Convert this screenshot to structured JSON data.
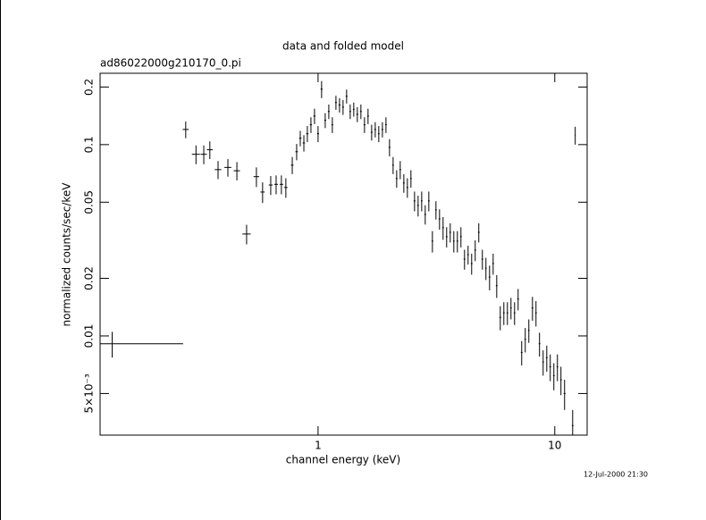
{
  "chart_data": {
    "type": "scatter",
    "title": "data and folded model",
    "subtitle": "ad86022000g210170_0.pi",
    "x_label": "channel energy (keV)",
    "y_label": "normalized counts/sec/keV",
    "timestamp": "12-Jul-2000 21:30",
    "xscale": "log",
    "yscale": "log",
    "color": "#000000",
    "xlim": [
      0.12,
      13.7
    ],
    "ylim": [
      0.00303,
      0.236
    ],
    "xticks": [
      1,
      10
    ],
    "yticks": [
      0.2,
      0.1,
      0.05,
      0.02,
      0.01,
      {
        "value": 0.005,
        "label": "5×10⁻³"
      }
    ],
    "x": [
      0.135,
      0.276,
      0.305,
      0.329,
      0.349,
      0.378,
      0.416,
      0.454,
      0.499,
      0.549,
      0.583,
      0.631,
      0.665,
      0.7,
      0.731,
      0.778,
      0.812,
      0.841,
      0.871,
      0.901,
      0.933,
      0.966,
      1.0,
      1.035,
      1.072,
      1.11,
      1.149,
      1.19,
      1.232,
      1.275,
      1.32,
      1.367,
      1.415,
      1.465,
      1.517,
      1.571,
      1.626,
      1.684,
      1.744,
      1.805,
      1.87,
      1.936,
      2.004,
      2.075,
      2.148,
      2.224,
      2.303,
      2.384,
      2.468,
      2.556,
      2.646,
      2.74,
      2.836,
      2.937,
      3.041,
      3.148,
      3.259,
      3.374,
      3.493,
      3.617,
      3.745,
      3.877,
      4.014,
      4.156,
      4.303,
      4.455,
      4.612,
      4.775,
      4.944,
      5.119,
      5.303,
      5.491,
      5.685,
      5.885,
      6.093,
      6.308,
      6.531,
      6.762,
      7.001,
      7.248,
      7.504,
      7.77,
      8.05,
      8.33,
      8.62,
      8.93,
      9.25,
      9.57,
      9.91,
      10.26,
      10.62,
      11.0,
      11.9,
      12.2
    ],
    "xerr": [
      0.134,
      0.008,
      0.012,
      0.01,
      0.01,
      0.012,
      0.014,
      0.014,
      0.02,
      0.015,
      0.012,
      0.012,
      0.012,
      0.012,
      0.012,
      0.01,
      0.01,
      0.01,
      0.01,
      0.01,
      0.01,
      0.01,
      0.01,
      0.01,
      0.01,
      0.01,
      0.01,
      0.01,
      0.012,
      0.012,
      0.012,
      0.012,
      0.012,
      0.014,
      0.014,
      0.014,
      0.014,
      0.015,
      0.015,
      0.015,
      0.016,
      0.016,
      0.017,
      0.017,
      0.018,
      0.018,
      0.02,
      0.02,
      0.02,
      0.022,
      0.022,
      0.022,
      0.024,
      0.024,
      0.025,
      0.026,
      0.027,
      0.028,
      0.03,
      0.03,
      0.03,
      0.032,
      0.033,
      0.035,
      0.035,
      0.037,
      0.038,
      0.04,
      0.04,
      0.042,
      0.044,
      0.045,
      0.05,
      0.05,
      0.05,
      0.05,
      0.05,
      0.055,
      0.06,
      0.06,
      0.06,
      0.06,
      0.07,
      0.07,
      0.07,
      0.07,
      0.08,
      0.08,
      0.08,
      0.08,
      0.09,
      0.1,
      0.1,
      0.05
    ],
    "values": [
      0.0091,
      0.12,
      0.089,
      0.089,
      0.094,
      0.074,
      0.076,
      0.073,
      0.0341,
      0.068,
      0.0565,
      0.0615,
      0.062,
      0.062,
      0.0597,
      0.0781,
      0.0918,
      0.108,
      0.102,
      0.114,
      0.127,
      0.141,
      0.114,
      0.195,
      0.134,
      0.149,
      0.127,
      0.166,
      0.161,
      0.157,
      0.179,
      0.149,
      0.153,
      0.144,
      0.149,
      0.127,
      0.141,
      0.116,
      0.12,
      0.114,
      0.12,
      0.127,
      0.0968,
      0.0781,
      0.0665,
      0.074,
      0.063,
      0.0597,
      0.0665,
      0.0508,
      0.0481,
      0.0508,
      0.0432,
      0.0508,
      0.0313,
      0.0456,
      0.0409,
      0.0368,
      0.033,
      0.0348,
      0.0313,
      0.0313,
      0.033,
      0.0252,
      0.0266,
      0.0239,
      0.0281,
      0.0348,
      0.0252,
      0.0226,
      0.0203,
      0.0239,
      0.0183,
      0.0125,
      0.0132,
      0.0132,
      0.014,
      0.0132,
      0.0156,
      0.0082,
      0.0096,
      0.0107,
      0.014,
      0.0132,
      0.0091,
      0.0073,
      0.0077,
      0.0069,
      0.0062,
      0.0069,
      0.0059,
      0.005,
      0.0034,
      0.112
    ],
    "yerr": [
      0.0014,
      0.012,
      0.01,
      0.01,
      0.01,
      0.008,
      0.008,
      0.008,
      0.004,
      0.008,
      0.007,
      0.007,
      0.007,
      0.007,
      0.007,
      0.008,
      0.009,
      0.01,
      0.01,
      0.011,
      0.012,
      0.013,
      0.011,
      0.02,
      0.012,
      0.013,
      0.012,
      0.014,
      0.014,
      0.014,
      0.015,
      0.013,
      0.013,
      0.013,
      0.013,
      0.012,
      0.013,
      0.011,
      0.011,
      0.011,
      0.011,
      0.012,
      0.01,
      0.008,
      0.007,
      0.008,
      0.007,
      0.007,
      0.007,
      0.006,
      0.006,
      0.006,
      0.005,
      0.006,
      0.004,
      0.005,
      0.005,
      0.005,
      0.004,
      0.004,
      0.004,
      0.004,
      0.004,
      0.003,
      0.003,
      0.003,
      0.0035,
      0.004,
      0.003,
      0.003,
      0.003,
      0.003,
      0.0025,
      0.0018,
      0.0018,
      0.0018,
      0.0018,
      0.0018,
      0.002,
      0.0012,
      0.0014,
      0.0015,
      0.002,
      0.002,
      0.0013,
      0.0011,
      0.0012,
      0.0011,
      0.001,
      0.0011,
      0.001,
      0.0009,
      0.0007,
      0.012
    ]
  }
}
